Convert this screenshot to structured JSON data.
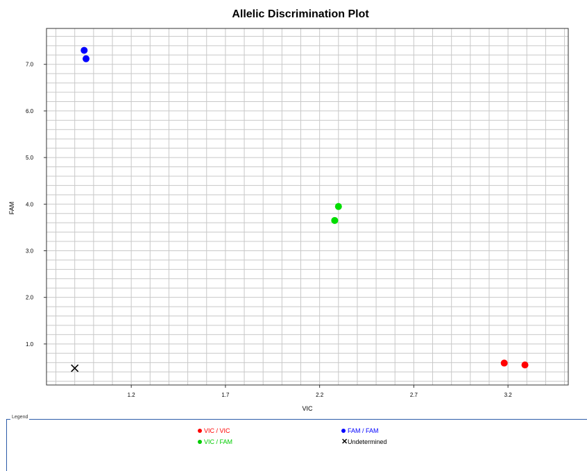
{
  "chart_data": {
    "type": "scatter",
    "title": "Allelic Discrimination Plot",
    "xlabel": "VIC",
    "ylabel": "FAM",
    "xlim": [
      0.75,
      3.52
    ],
    "ylim": [
      0.12,
      7.77
    ],
    "x_ticks": [
      "1.2",
      "1.7",
      "2.2",
      "2.7",
      "3.2"
    ],
    "x_tick_values": [
      1.2,
      1.7,
      2.2,
      2.7,
      3.2
    ],
    "y_ticks": [
      "1.0",
      "2.0",
      "3.0",
      "4.0",
      "5.0",
      "6.0",
      "7.0"
    ],
    "y_tick_values": [
      1.0,
      2.0,
      3.0,
      4.0,
      5.0,
      6.0,
      7.0
    ],
    "grid": true,
    "series": [
      {
        "name": "VIC / VIC",
        "color": "#ff0000",
        "marker": "circle",
        "points": [
          {
            "x": 3.18,
            "y": 0.59
          },
          {
            "x": 3.29,
            "y": 0.55
          }
        ]
      },
      {
        "name": "FAM / FAM",
        "color": "#0000ff",
        "marker": "circle",
        "points": [
          {
            "x": 0.95,
            "y": 7.3
          },
          {
            "x": 0.96,
            "y": 7.12
          }
        ]
      },
      {
        "name": "VIC / FAM",
        "color": "#00dd00",
        "marker": "circle",
        "points": [
          {
            "x": 2.28,
            "y": 3.65
          },
          {
            "x": 2.3,
            "y": 3.95
          }
        ]
      },
      {
        "name": "Undetermined",
        "color": "#000000",
        "marker": "x",
        "points": [
          {
            "x": 0.9,
            "y": 0.48
          }
        ]
      }
    ]
  },
  "legend": {
    "title": "Legend",
    "items": [
      {
        "label": "VIC / VIC",
        "color": "#ff0000",
        "marker": "circle"
      },
      {
        "label": "FAM / FAM",
        "color": "#0000ff",
        "marker": "circle"
      },
      {
        "label": "VIC / FAM",
        "color": "#00cc00",
        "marker": "circle"
      },
      {
        "label": "Undetermined",
        "color": "#000000",
        "marker": "x"
      }
    ]
  }
}
